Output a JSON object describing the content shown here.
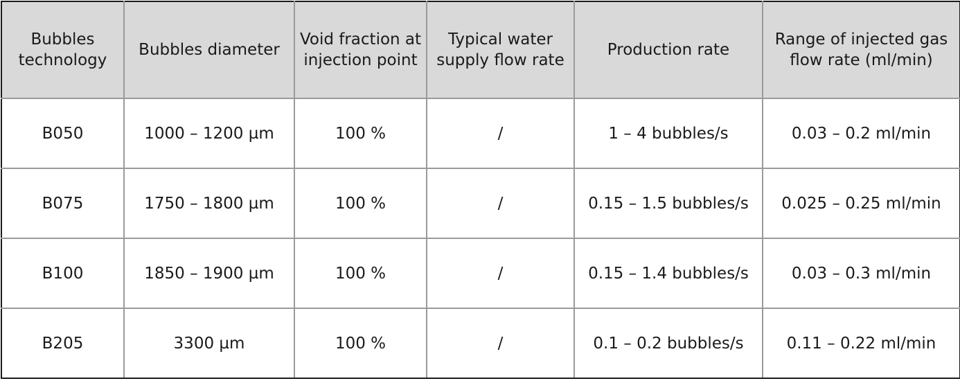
{
  "table": {
    "headers": [
      "Bubbles\ntechnology",
      "Bubbles diameter",
      "Void fraction at\ninjection point",
      "Typical water\nsupply flow rate",
      "Production rate",
      "Range of injected gas\nflow rate (ml/min)"
    ],
    "rows": [
      [
        "B050",
        "1000 – 1200 µm",
        "100 %",
        "/",
        "1 – 4 bubbles/s",
        "0.03 – 0.2 ml/min"
      ],
      [
        "B075",
        "1750 – 1800 µm",
        "100 %",
        "/",
        "0.15 – 1.5 bubbles/s",
        "0.025 – 0.25 ml/min"
      ],
      [
        "B100",
        "1850 – 1900 µm",
        "100 %",
        "/",
        "0.15 – 1.4 bubbles/s",
        "0.03 – 0.3 ml/min"
      ],
      [
        "B205",
        "3300 µm",
        "100 %",
        "/",
        "0.1 – 0.2 bubbles/s",
        "0.11 – 0.22 ml/min"
      ]
    ]
  }
}
